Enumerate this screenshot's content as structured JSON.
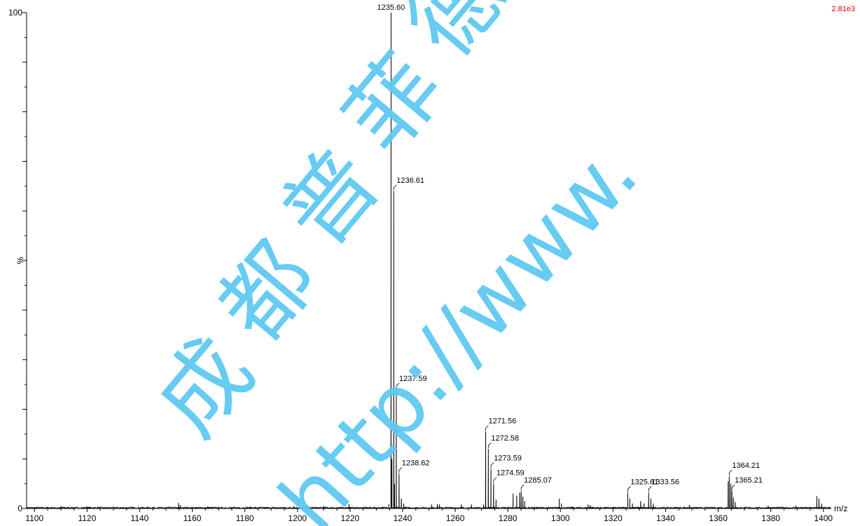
{
  "chart_data": {
    "type": "line",
    "xlabel": "m/z",
    "ylabel": "%",
    "xlim": [
      1097,
      1403
    ],
    "ylim": [
      0,
      100
    ],
    "x_ticks": [
      1100,
      1120,
      1140,
      1160,
      1180,
      1200,
      1220,
      1240,
      1260,
      1280,
      1300,
      1320,
      1340,
      1360,
      1380,
      1400
    ],
    "y_tick_labels": [
      "0",
      "100"
    ],
    "max_intensity_label": "2.81e3",
    "grid": false,
    "colors": {
      "line": "#000000",
      "intensity": "#e60000",
      "watermark": "#5cc8f2"
    },
    "peaks": [
      {
        "mz": 1235.6,
        "intensity": 100,
        "label": "1235.60"
      },
      {
        "mz": 1236.61,
        "intensity": 64,
        "label": "1236.61"
      },
      {
        "mz": 1237.59,
        "intensity": 24,
        "label": "1237.59"
      },
      {
        "mz": 1238.62,
        "intensity": 7,
        "label": "1238.62"
      },
      {
        "mz": 1271.56,
        "intensity": 15.5,
        "label": "1271.56"
      },
      {
        "mz": 1272.58,
        "intensity": 12,
        "label": "1272.58"
      },
      {
        "mz": 1273.59,
        "intensity": 8,
        "label": "1273.59"
      },
      {
        "mz": 1274.59,
        "intensity": 5,
        "label": "1274.59"
      },
      {
        "mz": 1285.07,
        "intensity": 3.5,
        "label": "1285.07"
      },
      {
        "mz": 1325.61,
        "intensity": 3.2,
        "label": "1325.61"
      },
      {
        "mz": 1333.56,
        "intensity": 3.2,
        "label": "1333.56"
      },
      {
        "mz": 1364.21,
        "intensity": 6.5,
        "label": "1364.21"
      },
      {
        "mz": 1365.21,
        "intensity": 3.5,
        "label": "1365.21"
      }
    ],
    "minor_peaks": [
      {
        "mz": 1110.2,
        "intensity": 0.5
      },
      {
        "mz": 1119.8,
        "intensity": 0.4
      },
      {
        "mz": 1154.8,
        "intensity": 1.1
      },
      {
        "mz": 1155.4,
        "intensity": 0.7
      },
      {
        "mz": 1166.0,
        "intensity": 0.4
      },
      {
        "mz": 1198.5,
        "intensity": 0.5
      },
      {
        "mz": 1209.9,
        "intensity": 0.5
      },
      {
        "mz": 1219.6,
        "intensity": 0.9
      },
      {
        "mz": 1234.7,
        "intensity": 0.9
      },
      {
        "mz": 1235.9,
        "intensity": 10
      },
      {
        "mz": 1236.9,
        "intensity": 5
      },
      {
        "mz": 1239.5,
        "intensity": 2.0
      },
      {
        "mz": 1240.4,
        "intensity": 1.0
      },
      {
        "mz": 1251.0,
        "intensity": 0.8
      },
      {
        "mz": 1253.2,
        "intensity": 0.9
      },
      {
        "mz": 1254.0,
        "intensity": 0.8
      },
      {
        "mz": 1262.3,
        "intensity": 0.8
      },
      {
        "mz": 1266.2,
        "intensity": 0.8
      },
      {
        "mz": 1270.8,
        "intensity": 0.8
      },
      {
        "mz": 1275.5,
        "intensity": 1.8
      },
      {
        "mz": 1282.0,
        "intensity": 3.0
      },
      {
        "mz": 1283.4,
        "intensity": 2.6
      },
      {
        "mz": 1284.5,
        "intensity": 3.2
      },
      {
        "mz": 1285.7,
        "intensity": 2.4
      },
      {
        "mz": 1286.4,
        "intensity": 1.5
      },
      {
        "mz": 1299.6,
        "intensity": 2.0
      },
      {
        "mz": 1300.4,
        "intensity": 1.0
      },
      {
        "mz": 1310.5,
        "intensity": 0.8
      },
      {
        "mz": 1311.3,
        "intensity": 0.7
      },
      {
        "mz": 1326.4,
        "intensity": 2.0
      },
      {
        "mz": 1327.4,
        "intensity": 1.0
      },
      {
        "mz": 1330.5,
        "intensity": 1.5
      },
      {
        "mz": 1331.8,
        "intensity": 1.0
      },
      {
        "mz": 1334.4,
        "intensity": 2.0
      },
      {
        "mz": 1335.3,
        "intensity": 1.0
      },
      {
        "mz": 1349.0,
        "intensity": 0.7
      },
      {
        "mz": 1363.8,
        "intensity": 5.5
      },
      {
        "mz": 1364.8,
        "intensity": 5.0
      },
      {
        "mz": 1365.8,
        "intensity": 2.2
      },
      {
        "mz": 1366.5,
        "intensity": 1.3
      },
      {
        "mz": 1379.0,
        "intensity": 0.6
      },
      {
        "mz": 1389.5,
        "intensity": 0.6
      },
      {
        "mz": 1397.5,
        "intensity": 2.5
      },
      {
        "mz": 1398.3,
        "intensity": 2.0
      },
      {
        "mz": 1399.3,
        "intensity": 1.0
      }
    ]
  },
  "watermark": {
    "chars": [
      "成",
      "都",
      "普",
      "菲",
      "德"
    ],
    "url_text": "http://www."
  }
}
